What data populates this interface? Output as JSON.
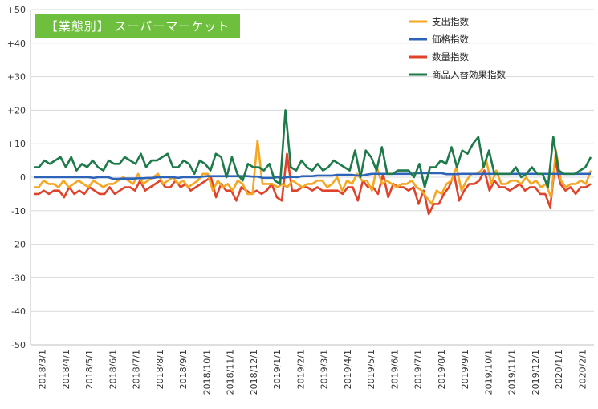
{
  "chart_data": {
    "type": "line",
    "title": "【業態別】 スーパーマーケット",
    "title_bg": "#6fbf3f",
    "ylim": [
      -50,
      50
    ],
    "y_ticks": [
      "-50",
      "-40",
      "-30",
      "-20",
      "-10",
      "0",
      "+10",
      "+20",
      "+30",
      "+40",
      "+50"
    ],
    "x_tick_labels": [
      "2018/3/1",
      "2018/4/1",
      "2018/5/1",
      "2018/6/1",
      "2018/7/1",
      "2018/8/1",
      "2018/9/1",
      "2018/10/1",
      "2018/11/1",
      "2018/12/1",
      "2019/1/1",
      "2019/2/1",
      "2019/3/1",
      "2019/4/1",
      "2019/5/1",
      "2019/6/1",
      "2019/7/1",
      "2019/8/1",
      "2019/9/1",
      "2019/10/1",
      "2019/11/1",
      "2019/12/1",
      "2020/1/1",
      "2020/2/1"
    ],
    "grid": true,
    "legend_position": "top-right",
    "series": [
      {
        "name": "支出指数",
        "color": "#f5a623",
        "values": [
          -3,
          -3,
          -1,
          -2,
          -2,
          -3,
          -1,
          -3,
          -2,
          -1,
          -2,
          -3,
          -1,
          -2,
          -3,
          -2,
          -2,
          -1,
          0,
          -1,
          -2,
          1,
          -2,
          -1,
          0,
          1,
          -2,
          -1,
          0,
          -2,
          -1,
          -3,
          -2,
          -1,
          1,
          1,
          -4,
          -1,
          -3,
          -2,
          -4,
          -1,
          -2,
          -5,
          -5,
          11,
          -2,
          -2,
          -2,
          -3,
          -2,
          -3,
          -1,
          -2,
          -3,
          -2,
          -2,
          -1,
          -1,
          -3,
          -2,
          0,
          -4,
          -1,
          -2,
          1,
          -1,
          -1,
          -4,
          3,
          -2,
          -1,
          -2,
          -3,
          -2,
          -2,
          -1,
          -3,
          -4,
          -6,
          -8,
          -4,
          -5,
          -2,
          -1,
          3,
          -4,
          -1,
          1,
          1,
          2,
          5,
          -2,
          2,
          -2,
          -2,
          -1,
          -1,
          -2,
          0,
          -2,
          -1,
          -3,
          -2,
          -6,
          8,
          -1,
          -3,
          -2,
          -2,
          -1,
          -2,
          2
        ]
      },
      {
        "name": "価格指数",
        "color": "#2e64b8",
        "values": [
          0,
          0,
          0,
          0,
          0,
          0,
          0,
          0,
          0,
          0,
          0,
          0,
          -0.2,
          0,
          0,
          0,
          -0.5,
          -0.5,
          -0.4,
          -0.4,
          -0.4,
          -0.3,
          -0.3,
          -0.2,
          -0.2,
          0,
          0,
          0,
          0,
          -0.2,
          0,
          0,
          0,
          0,
          0.2,
          0.3,
          0.3,
          0.3,
          0.3,
          0.3,
          0.3,
          0.3,
          0.3,
          0.3,
          0.2,
          0.2,
          -0.2,
          -0.2,
          -0.2,
          0,
          -0.2,
          0,
          0.1,
          0,
          0.3,
          0.3,
          0.3,
          0.5,
          0.5,
          0.5,
          0.5,
          0.7,
          0.7,
          0.7,
          0.7,
          0.5,
          0.5,
          0.8,
          1,
          1,
          1,
          1,
          1,
          1,
          1,
          1,
          1,
          1.2,
          1.2,
          1.2,
          1.2,
          1.2,
          1.2,
          0.9,
          0.9,
          0.9,
          1,
          1,
          1,
          1,
          1,
          1,
          1,
          1,
          1,
          1,
          1,
          1,
          1,
          1,
          1,
          1,
          1,
          1,
          1,
          1,
          1,
          1,
          1,
          1,
          1,
          1,
          1
        ]
      },
      {
        "name": "数量指数",
        "color": "#e0432b",
        "values": [
          -5,
          -5,
          -4,
          -5,
          -4,
          -4,
          -6,
          -3,
          -5,
          -4,
          -5,
          -3,
          -4,
          -5,
          -5,
          -3,
          -5,
          -4,
          -3,
          -3,
          -4,
          -1,
          -4,
          -3,
          -2,
          -1,
          -3,
          -3,
          -1,
          -3,
          -2,
          -4,
          -3,
          -2,
          -1,
          0,
          -6,
          -2,
          -4,
          -4,
          -7,
          -3,
          -4,
          -5,
          -4,
          -5,
          -4,
          -2,
          -6,
          -7,
          7,
          -4,
          -4,
          -3,
          -3,
          -4,
          -3,
          -4,
          -4,
          -4,
          -4,
          -5,
          -3,
          -3,
          -7,
          -1,
          -3,
          -3,
          -5,
          1,
          -6,
          -2,
          -3,
          -3,
          -4,
          -3,
          -8,
          -4,
          -11,
          -8,
          -8,
          -5,
          -3,
          1,
          -7,
          -4,
          -2,
          -2,
          -1,
          2,
          -4,
          -1,
          -3,
          -3,
          -4,
          -3,
          -2,
          -4,
          -3,
          -3,
          -5,
          -5,
          -9,
          5,
          -2,
          -4,
          -3,
          -5,
          -3,
          -3,
          -2
        ]
      },
      {
        "name": "商品入替効果指数",
        "color": "#1e7a4a",
        "values": [
          3,
          3,
          5,
          4,
          5,
          6,
          3,
          6,
          2,
          4,
          3,
          5,
          3,
          2,
          5,
          4,
          4,
          6,
          5,
          4,
          7,
          3,
          5,
          5,
          6,
          7,
          3,
          3,
          5,
          4,
          1,
          5,
          4,
          2,
          7,
          6,
          0,
          6,
          1,
          -1,
          4,
          3,
          3,
          2,
          4,
          -1,
          -2,
          20,
          3,
          2,
          5,
          3,
          2,
          4,
          2,
          3,
          5,
          4,
          3,
          2,
          8,
          0,
          8,
          6,
          2,
          9,
          1,
          1,
          2,
          2,
          2,
          0,
          4,
          -3,
          3,
          3,
          5,
          4,
          9,
          3,
          8,
          7,
          10,
          12,
          3,
          8,
          1,
          1,
          1,
          1,
          3,
          0,
          1,
          3,
          1,
          1,
          -3,
          12,
          2,
          1,
          1,
          1,
          2,
          3,
          6
        ]
      }
    ]
  }
}
